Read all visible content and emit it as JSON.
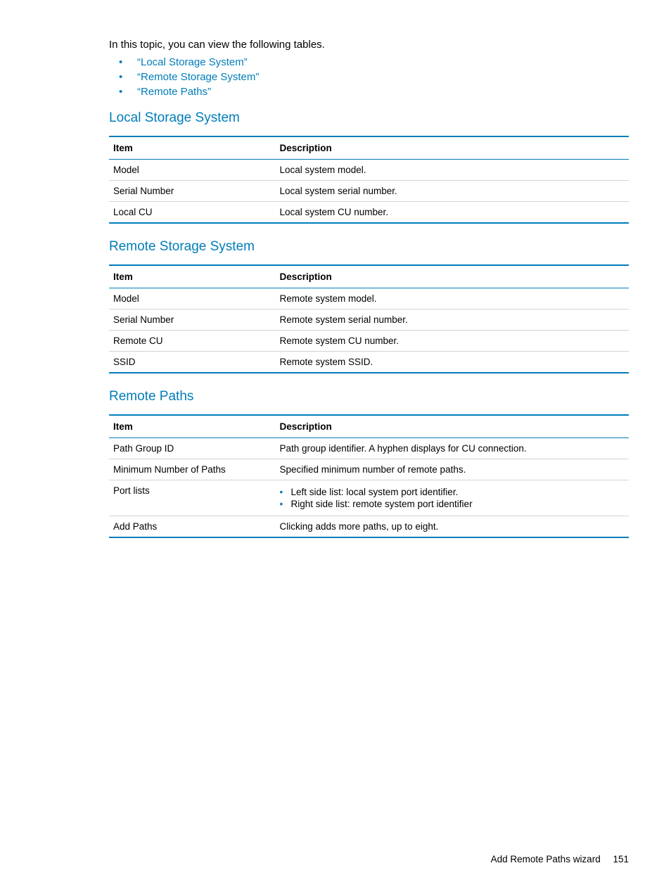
{
  "intro": "In this topic, you can view the following tables.",
  "toc": [
    "“Local Storage System”",
    "“Remote Storage System”",
    "“Remote Paths”"
  ],
  "columns": {
    "item": "Item",
    "description": "Description"
  },
  "sections": {
    "local": {
      "heading": "Local Storage System",
      "rows": [
        {
          "item": "Model",
          "desc": "Local system model."
        },
        {
          "item": "Serial Number",
          "desc": "Local system serial number."
        },
        {
          "item": "Local CU",
          "desc": "Local system CU number."
        }
      ]
    },
    "remote": {
      "heading": "Remote Storage System",
      "rows": [
        {
          "item": "Model",
          "desc": "Remote system model."
        },
        {
          "item": "Serial Number",
          "desc": "Remote system serial number."
        },
        {
          "item": "Remote CU",
          "desc": "Remote system CU number."
        },
        {
          "item": "SSID",
          "desc": "Remote system SSID."
        }
      ]
    },
    "paths": {
      "heading": "Remote Paths",
      "rows": [
        {
          "item": "Path Group ID",
          "desc": "Path group identifier. A hyphen displays for CU connection."
        },
        {
          "item": "Minimum Number of Paths",
          "desc": "Specified minimum number of remote paths."
        },
        {
          "item": "Port lists",
          "list": [
            "Left side list: local system port identifier.",
            "Right side list: remote system port identifier"
          ]
        },
        {
          "item": "Add Paths",
          "desc": "Clicking adds more paths, up to eight."
        }
      ]
    }
  },
  "footer": {
    "title": "Add Remote Paths wizard",
    "page": "151"
  },
  "colors": {
    "accent": "#007dba",
    "row_border": "#cfd4d8",
    "text": "#000000",
    "background": "#ffffff"
  },
  "typography": {
    "body_fontsize": 15,
    "heading_fontsize": 19,
    "table_fontsize": 13.5,
    "footer_fontsize": 13.5
  }
}
